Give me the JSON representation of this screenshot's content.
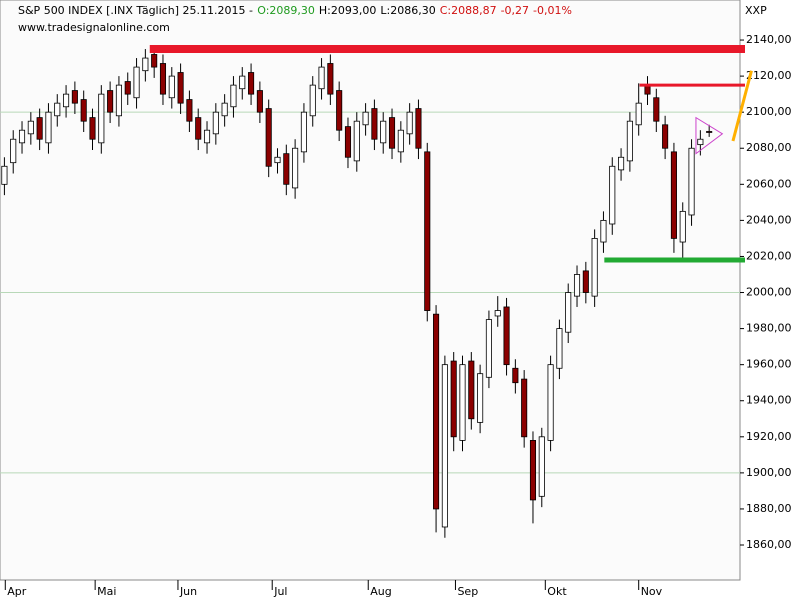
{
  "chart_data": {
    "type": "candlestick",
    "header": [
      {
        "text": "S&P 500 INDEX [.INX  Täglich] 25.11.2015  -",
        "color": "#000000"
      },
      {
        "text": "O:2089,30",
        "color": "#1f9a1f"
      },
      {
        "text": "H:2093,00",
        "color": "#000000"
      },
      {
        "text": "L:2086,30",
        "color": "#000000"
      },
      {
        "text": "C:2088,87",
        "color": "#d01010"
      },
      {
        "text": "-0,27",
        "color": "#d01010"
      },
      {
        "text": "-0,01%",
        "color": "#d01010"
      }
    ],
    "source": "www.tradesignalonline.com",
    "corner_label": "XXP",
    "ylim": [
      1840.6,
      2162.2
    ],
    "yticks": [
      {
        "value": 1860,
        "label": "1860,00"
      },
      {
        "value": 1880,
        "label": "1880,00"
      },
      {
        "value": 1900,
        "label": "1900,00"
      },
      {
        "value": 1920,
        "label": "1920,00"
      },
      {
        "value": 1940,
        "label": "1940,00"
      },
      {
        "value": 1960,
        "label": "1960,00"
      },
      {
        "value": 1980,
        "label": "1980,00"
      },
      {
        "value": 2000,
        "label": "2000,00"
      },
      {
        "value": 2020,
        "label": "2020,00"
      },
      {
        "value": 2040,
        "label": "2040,00"
      },
      {
        "value": 2060,
        "label": "2060,00"
      },
      {
        "value": 2080,
        "label": "2080,00"
      },
      {
        "value": 2100,
        "label": "2100,00"
      },
      {
        "value": 2120,
        "label": "2120,00"
      },
      {
        "value": 2140,
        "label": "2140,00"
      }
    ],
    "ygrid": [
      1900,
      2000,
      2100
    ],
    "xlim": [
      0,
      84
    ],
    "xticks": [
      {
        "value": 0.6,
        "label": "Apr"
      },
      {
        "value": 10.8,
        "label": "Mai"
      },
      {
        "value": 20.2,
        "label": "Jun"
      },
      {
        "value": 30.9,
        "label": "Jul"
      },
      {
        "value": 41.8,
        "label": "Aug"
      },
      {
        "value": 51.7,
        "label": "Sep"
      },
      {
        "value": 61.9,
        "label": "Okt"
      },
      {
        "value": 72.5,
        "label": "Nov"
      }
    ],
    "up_color": "#ffffff",
    "down_color": "#8b0000",
    "open": [
      2060,
      2072,
      2083,
      2088,
      2097,
      2083,
      2098,
      2103,
      2112,
      2107,
      2097,
      2083,
      2112,
      2098,
      2117,
      2108,
      2123,
      2132,
      2127,
      2108,
      2122,
      2107,
      2097,
      2083,
      2088,
      2098,
      2103,
      2113,
      2122,
      2112,
      2102,
      2072,
      2077,
      2058,
      2078,
      2098,
      2113,
      2127,
      2112,
      2092,
      2073,
      2093,
      2102,
      2083,
      2097,
      2078,
      2088,
      2102,
      2078,
      1988,
      1870,
      1962,
      1918,
      1962,
      1928,
      1953,
      1987,
      1992,
      1958,
      1952,
      1918,
      1887,
      1918,
      1958,
      1978,
      1998,
      2012,
      1998,
      2028,
      2038,
      2068,
      2073,
      2093,
      2115,
      2108,
      2093,
      2078,
      2028,
      2043,
      2082,
      2089.3
    ],
    "high": [
      2075,
      2090,
      2095,
      2100,
      2102,
      2105,
      2110,
      2115,
      2117,
      2112,
      2102,
      2115,
      2117,
      2120,
      2122,
      2130,
      2135,
      2137,
      2132,
      2125,
      2127,
      2112,
      2102,
      2095,
      2105,
      2110,
      2120,
      2125,
      2127,
      2117,
      2107,
      2080,
      2082,
      2085,
      2105,
      2120,
      2130,
      2132,
      2117,
      2097,
      2100,
      2105,
      2107,
      2100,
      2102,
      2095,
      2105,
      2107,
      2083,
      1993,
      1965,
      1967,
      1965,
      1967,
      1960,
      1990,
      1998,
      1997,
      1963,
      1957,
      1923,
      1925,
      1965,
      1985,
      2005,
      2015,
      2017,
      2035,
      2045,
      2075,
      2080,
      2100,
      2116,
      2120,
      2113,
      2098,
      2083,
      2050,
      2085,
      2090,
      2093
    ],
    "low": [
      2054,
      2066,
      2077,
      2082,
      2079,
      2077,
      2092,
      2097,
      2099,
      2089,
      2079,
      2077,
      2094,
      2092,
      2104,
      2102,
      2117,
      2119,
      2104,
      2102,
      2099,
      2089,
      2079,
      2077,
      2082,
      2092,
      2097,
      2107,
      2104,
      2094,
      2064,
      2066,
      2054,
      2052,
      2072,
      2092,
      2107,
      2104,
      2084,
      2069,
      2067,
      2087,
      2079,
      2077,
      2074,
      2072,
      2082,
      2074,
      1984,
      1867,
      1864,
      1912,
      1912,
      1924,
      1922,
      1947,
      1981,
      1954,
      1944,
      1914,
      1872,
      1881,
      1912,
      1952,
      1972,
      1992,
      1994,
      1992,
      2022,
      2032,
      2062,
      2067,
      2087,
      2104,
      2089,
      2074,
      2022,
      2019,
      2037,
      2076,
      2086.3
    ],
    "close": [
      2070,
      2085,
      2090,
      2095,
      2085,
      2100,
      2105,
      2110,
      2105,
      2095,
      2085,
      2110,
      2100,
      2115,
      2110,
      2125,
      2130,
      2125,
      2110,
      2120,
      2105,
      2095,
      2085,
      2090,
      2100,
      2105,
      2115,
      2120,
      2110,
      2100,
      2070,
      2075,
      2060,
      2080,
      2100,
      2115,
      2125,
      2110,
      2090,
      2075,
      2095,
      2100,
      2085,
      2095,
      2080,
      2090,
      2100,
      2080,
      1990,
      1880,
      1960,
      1920,
      1960,
      1930,
      1955,
      1985,
      1990,
      1960,
      1950,
      1920,
      1885,
      1920,
      1960,
      1980,
      2000,
      2010,
      2000,
      2030,
      2040,
      2070,
      2075,
      2095,
      2105,
      2110,
      2095,
      2080,
      2030,
      2045,
      2080,
      2085,
      2088.87
    ],
    "hlines": [
      {
        "y": 2135,
        "from": 17.0,
        "color": "#e8182a",
        "width": 8
      },
      {
        "y": 2115,
        "from": 72.6,
        "color": "#e8182a",
        "width": 3
      },
      {
        "y": 2018,
        "from": 68.6,
        "color": "#22aa33",
        "width": 5
      }
    ],
    "trendline": {
      "x": [
        83.2,
        85.3
      ],
      "y": [
        2084,
        2123
      ],
      "color": "#ffb000"
    },
    "triangle": {
      "x": [
        79.0,
        79.0,
        82.0
      ],
      "y": [
        2097,
        2077,
        2088
      ],
      "color": "#cc44cc"
    }
  }
}
